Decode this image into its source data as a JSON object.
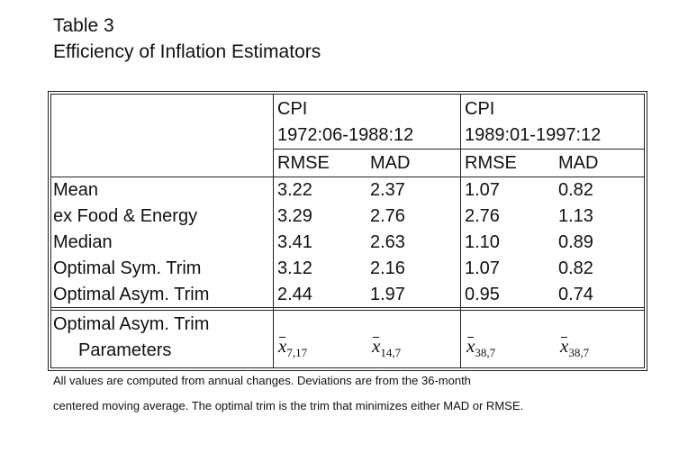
{
  "title_line1": "Table 3",
  "title_line2": "Efficiency of Inflation Estimators",
  "groups": [
    {
      "line1": "CPI",
      "line2": "1972:06-1988:12"
    },
    {
      "line1": "CPI",
      "line2": "1989:01-1997:12"
    }
  ],
  "columns": [
    "RMSE",
    "MAD",
    "RMSE",
    "MAD"
  ],
  "rows": [
    {
      "label": "Mean",
      "values": [
        "3.22",
        "2.37",
        "1.07",
        "0.82"
      ]
    },
    {
      "label": "ex Food & Energy",
      "values": [
        "3.29",
        "2.76",
        "2.76",
        "1.13"
      ]
    },
    {
      "label": "Median",
      "values": [
        "3.41",
        "2.63",
        "1.10",
        "0.89"
      ]
    },
    {
      "label": "Optimal Sym. Trim",
      "values": [
        "3.12",
        "2.16",
        "1.07",
        "0.82"
      ]
    },
    {
      "label": "Optimal Asym. Trim",
      "values": [
        "2.44",
        "1.97",
        "0.95",
        "0.74"
      ]
    }
  ],
  "params": {
    "label1": "Optimal Asym. Trim",
    "label2": "Parameters",
    "symbol": "x",
    "subs": [
      "7,17",
      "14,7",
      "38,7",
      "38,7"
    ]
  },
  "footnote": [
    "All values are computed from annual changes.  Deviations are from the 36-month",
    "centered moving average.  The optimal trim is the trim that minimizes either MAD or RMSE."
  ]
}
